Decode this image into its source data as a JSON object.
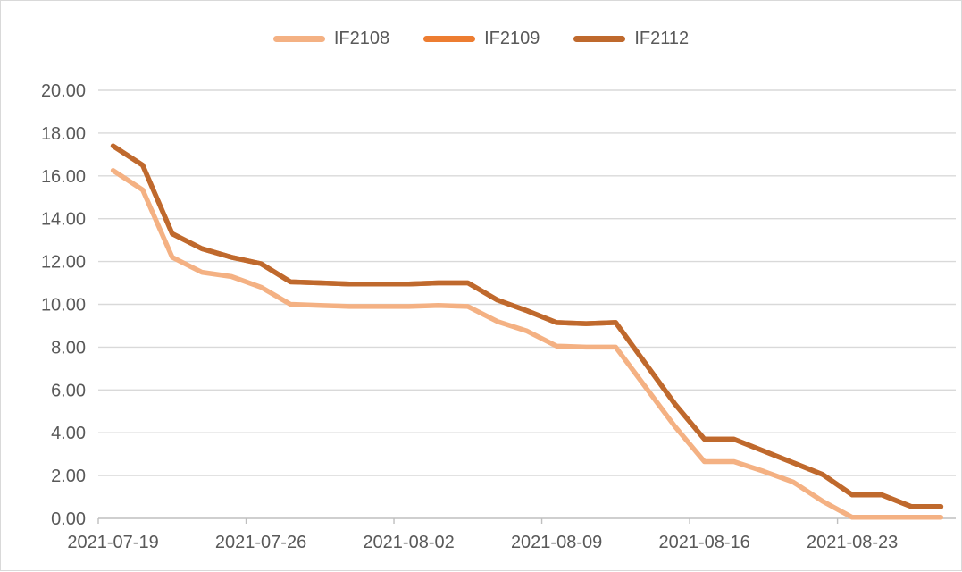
{
  "chart_data": {
    "type": "line",
    "title": "",
    "xlabel": "",
    "ylabel": "",
    "ylim": [
      0,
      20
    ],
    "ytick_step": 2,
    "y_tick_labels": [
      "0.00",
      "2.00",
      "4.00",
      "6.00",
      "8.00",
      "10.00",
      "12.00",
      "14.00",
      "16.00",
      "18.00",
      "20.00"
    ],
    "x_tick_labels": [
      "2021-07-19",
      "2021-07-26",
      "2021-08-02",
      "2021-08-09",
      "2021-08-16",
      "2021-08-23"
    ],
    "x_tick_interval": 5,
    "grid": true,
    "legend_position": "top",
    "x": [
      "2021-07-19",
      "2021-07-20",
      "2021-07-21",
      "2021-07-22",
      "2021-07-23",
      "2021-07-26",
      "2021-07-27",
      "2021-07-28",
      "2021-07-29",
      "2021-07-30",
      "2021-08-02",
      "2021-08-03",
      "2021-08-04",
      "2021-08-05",
      "2021-08-06",
      "2021-08-09",
      "2021-08-10",
      "2021-08-11",
      "2021-08-12",
      "2021-08-13",
      "2021-08-16",
      "2021-08-17",
      "2021-08-18",
      "2021-08-19",
      "2021-08-20",
      "2021-08-23",
      "2021-08-24",
      "2021-08-25",
      "2021-08-26"
    ],
    "series": [
      {
        "name": "IF2108",
        "color": "#F4B183",
        "values": [
          16.25,
          15.35,
          12.2,
          11.5,
          11.3,
          10.8,
          10.0,
          9.95,
          9.9,
          9.9,
          9.9,
          9.95,
          9.9,
          9.2,
          8.75,
          8.05,
          8.0,
          8.0,
          6.15,
          4.3,
          2.65,
          2.65,
          2.2,
          1.7,
          0.8,
          0.05,
          0.05,
          0.05,
          0.05
        ]
      },
      {
        "name": "IF2109",
        "color": "#ED7D31",
        "values": [
          17.4,
          16.5,
          13.3,
          12.6,
          12.2,
          11.9,
          11.05,
          11.0,
          10.95,
          10.95,
          10.95,
          11.0,
          11.0,
          10.2,
          9.7,
          9.15,
          9.1,
          9.15,
          7.25,
          5.35,
          3.7,
          3.7,
          3.15,
          2.6,
          2.05,
          1.1,
          1.1,
          0.55,
          0.55
        ]
      },
      {
        "name": "IF2112",
        "color": "#BF692D",
        "values": [
          17.4,
          16.5,
          13.3,
          12.6,
          12.2,
          11.9,
          11.05,
          11.0,
          10.95,
          10.95,
          10.95,
          11.0,
          11.0,
          10.2,
          9.7,
          9.15,
          9.1,
          9.15,
          7.25,
          5.35,
          3.7,
          3.7,
          3.15,
          2.6,
          2.05,
          1.1,
          1.1,
          0.55,
          0.55
        ]
      }
    ]
  },
  "colors": {
    "gridline": "#D9D9D9",
    "axis_line": "#BFBFBF",
    "tick_mark": "#BFBFBF",
    "axis_text": "#595959",
    "legend_text": "#595959",
    "frame_border": "#D9D9D9",
    "background": "#FFFFFF"
  }
}
